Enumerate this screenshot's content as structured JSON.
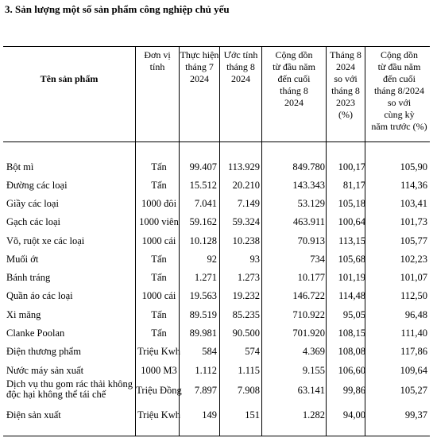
{
  "title": "3. Sản lượng một số sản phẩm công nghiệp chủ yếu",
  "header": {
    "name": "Tên sản phẩm",
    "unit": "Đơn vị\ntính",
    "m7": "Thực hiện\ntháng 7\n2024",
    "m8": "Ước tính\ntháng 8\n2024",
    "cum": "Cộng dồn\ntừ đầu năm\nđến cuối\ntháng 8\n2024",
    "pct8": "Tháng 8\n2024\nso với\ntháng 8\n2023\n(%)",
    "pctc": "Cộng dồn\ntừ đầu năm\nđến cuối\ntháng 8/2024\nso với\ncùng kỳ\nnăm trước (%)"
  },
  "rows": [
    {
      "name": "Bột mì",
      "unit": "Tấn",
      "m7": "99.407",
      "m8": "113.929",
      "cum": "849.780",
      "pct8": "100,17",
      "pctc": "105,90"
    },
    {
      "name": "Đường các loại",
      "unit": "Tấn",
      "m7": "15.512",
      "m8": "20.210",
      "cum": "143.343",
      "pct8": "81,17",
      "pctc": "114,36"
    },
    {
      "name": "Giầy các loại",
      "unit": "1000 đôi",
      "m7": "7.041",
      "m8": "7.149",
      "cum": "53.129",
      "pct8": "105,18",
      "pctc": "103,41"
    },
    {
      "name": "Gạch các loại",
      "unit": "1000 viên",
      "m7": "59.162",
      "m8": "59.324",
      "cum": "463.911",
      "pct8": "100,64",
      "pctc": "101,73"
    },
    {
      "name": "Võ, ruột xe các loại",
      "unit": "1000 cái",
      "m7": "10.128",
      "m8": "10.238",
      "cum": "70.913",
      "pct8": "113,15",
      "pctc": "105,77"
    },
    {
      "name": "Muối ớt",
      "unit": "Tấn",
      "m7": "92",
      "m8": "93",
      "cum": "734",
      "pct8": "105,68",
      "pctc": "102,23"
    },
    {
      "name": "Bánh tráng",
      "unit": "Tấn",
      "m7": "1.271",
      "m8": "1.273",
      "cum": "10.177",
      "pct8": "101,19",
      "pctc": "101,07"
    },
    {
      "name": "Quần áo các loại",
      "unit": "1000 cái",
      "m7": "19.563",
      "m8": "19.232",
      "cum": "146.722",
      "pct8": "114,48",
      "pctc": "112,50"
    },
    {
      "name": "Xi măng",
      "unit": "Tấn",
      "m7": "89.519",
      "m8": "85.235",
      "cum": "710.922",
      "pct8": "95,05",
      "pctc": "96,48"
    },
    {
      "name": "Clanke Poolan",
      "unit": "Tấn",
      "m7": "89.981",
      "m8": "90.500",
      "cum": "701.920",
      "pct8": "108,15",
      "pctc": "111,40"
    },
    {
      "name": "Điện thương phẩm",
      "unit": "Triệu Kwh",
      "m7": "584",
      "m8": "574",
      "cum": "4.369",
      "pct8": "108,08",
      "pctc": "117,86"
    },
    {
      "name": "Nước máy sản xuất",
      "unit": "1000 M3",
      "m7": "1.112",
      "m8": "1.115",
      "cum": "9.155",
      "pct8": "106,60",
      "pctc": "109,64"
    },
    {
      "name": "Dịch vụ thu gom rác thải không độc hại không thể tái chế",
      "unit": "Triệu Đồng",
      "m7": "7.897",
      "m8": "7.908",
      "cum": "63.141",
      "pct8": "99,86",
      "pctc": "105,27"
    },
    {
      "name": "Điện sản xuất",
      "unit": "Triệu Kwh",
      "m7": "149",
      "m8": "151",
      "cum": "1.282",
      "pct8": "94,00",
      "pctc": "99,37"
    }
  ]
}
